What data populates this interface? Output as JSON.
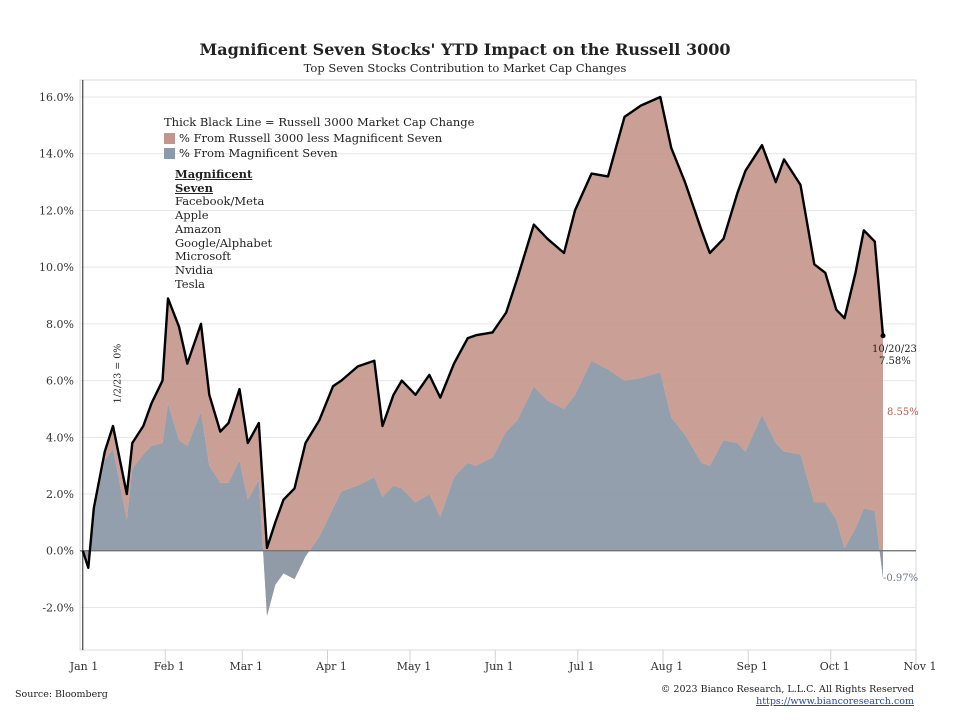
{
  "title": "Magnificent Seven Stocks' YTD Impact on the Russell 3000",
  "subtitle": "Top Seven Stocks Contribution to Market Cap Changes",
  "legend": {
    "line_label": "Thick Black Line = Russell 3000 Market Cap Change",
    "rest_label": "% From Russell 3000 less Magnificent Seven",
    "m7_label": "% From Magnificent Seven"
  },
  "magnificent_seven": {
    "heading": "Magnificent Seven",
    "heading_line1": "Magnificent",
    "heading_line2": "Seven",
    "names": [
      "Facebook/Meta",
      "Apple",
      "Amazon",
      "Google/Alphabet",
      "Microsoft",
      "Nvidia",
      "Tesla"
    ]
  },
  "annotations": {
    "start_line": "1/2/23 = 0%",
    "end_date": "10/20/23",
    "end_total": "7.58%",
    "end_rest": "8.55%",
    "end_m7": "-0.97%"
  },
  "footer": {
    "source": "Source: Bloomberg",
    "copyright": "© 2023 Bianco Research, L.L.C. All Rights Reserved",
    "url": "https://www.biancoresearch.com"
  },
  "colors": {
    "rest_area": "#c4958a",
    "m7_area": "#8d9aa8",
    "total_line": "#000000",
    "end_rest_text": "#b0604f",
    "end_m7_text": "#6d7a88"
  },
  "chart_data": {
    "type": "area",
    "title": "Magnificent Seven Stocks' YTD Impact on the Russell 3000",
    "subtitle": "Top Seven Stocks Contribution to Market Cap Changes",
    "x_ticks": [
      "Jan 1",
      "Feb 1",
      "Mar 1",
      "Apr 1",
      "May 1",
      "Jun 1",
      "Jul 1",
      "Aug 1",
      "Sep 1",
      "Oct 1",
      "Nov 1"
    ],
    "y_ticks": [
      "-2.0%",
      "0.0%",
      "2.0%",
      "4.0%",
      "6.0%",
      "8.0%",
      "10.0%",
      "12.0%",
      "14.0%",
      "16.0%"
    ],
    "ylim": [
      -3.5,
      16.6
    ],
    "xlim": [
      "2023-01-01",
      "2023-11-01"
    ],
    "grid": "horizontal",
    "x": [
      "2023-01-02",
      "2023-01-04",
      "2023-01-06",
      "2023-01-10",
      "2023-01-13",
      "2023-01-18",
      "2023-01-20",
      "2023-01-24",
      "2023-01-27",
      "2023-01-31",
      "2023-02-02",
      "2023-02-06",
      "2023-02-09",
      "2023-02-14",
      "2023-02-17",
      "2023-02-21",
      "2023-02-24",
      "2023-02-28",
      "2023-03-03",
      "2023-03-07",
      "2023-03-10",
      "2023-03-13",
      "2023-03-16",
      "2023-03-20",
      "2023-03-24",
      "2023-03-29",
      "2023-04-03",
      "2023-04-06",
      "2023-04-12",
      "2023-04-18",
      "2023-04-21",
      "2023-04-25",
      "2023-04-28",
      "2023-05-03",
      "2023-05-08",
      "2023-05-12",
      "2023-05-17",
      "2023-05-22",
      "2023-05-25",
      "2023-05-31",
      "2023-06-05",
      "2023-06-09",
      "2023-06-15",
      "2023-06-20",
      "2023-06-26",
      "2023-06-30",
      "2023-07-06",
      "2023-07-12",
      "2023-07-18",
      "2023-07-24",
      "2023-07-31",
      "2023-08-04",
      "2023-08-09",
      "2023-08-15",
      "2023-08-18",
      "2023-08-23",
      "2023-08-28",
      "2023-08-31",
      "2023-09-06",
      "2023-09-11",
      "2023-09-14",
      "2023-09-20",
      "2023-09-25",
      "2023-09-29",
      "2023-10-03",
      "2023-10-06",
      "2023-10-10",
      "2023-10-13",
      "2023-10-17",
      "2023-10-20"
    ],
    "series": [
      {
        "name": "Thick Black Line = Russell 3000 Market Cap Change",
        "values": [
          0.0,
          -0.6,
          1.5,
          3.5,
          4.4,
          2.0,
          3.8,
          4.4,
          5.2,
          6.0,
          8.9,
          7.9,
          6.6,
          8.0,
          5.5,
          4.2,
          4.5,
          5.7,
          3.8,
          4.5,
          0.1,
          1.0,
          1.8,
          2.2,
          3.8,
          4.6,
          5.8,
          6.0,
          6.5,
          6.7,
          4.4,
          5.5,
          6.0,
          5.5,
          6.2,
          5.4,
          6.6,
          7.5,
          7.6,
          7.7,
          8.4,
          9.6,
          11.5,
          11.0,
          10.5,
          12.0,
          13.3,
          13.2,
          15.3,
          15.7,
          16.0,
          14.2,
          13.0,
          11.3,
          10.5,
          11.0,
          12.6,
          13.4,
          14.3,
          13.0,
          13.8,
          12.9,
          10.1,
          9.8,
          8.5,
          8.2,
          9.8,
          11.3,
          10.9,
          7.58
        ]
      },
      {
        "name": "% From Russell 3000 less Magnificent Seven",
        "values": [
          0.0,
          -0.3,
          0.2,
          0.3,
          0.8,
          0.9,
          0.9,
          1.0,
          1.5,
          2.2,
          3.7,
          4.0,
          2.9,
          3.1,
          2.5,
          1.8,
          2.1,
          2.5,
          2.0,
          2.0,
          2.4,
          2.2,
          2.6,
          3.2,
          4.0,
          4.1,
          4.3,
          3.9,
          4.2,
          4.1,
          2.5,
          3.2,
          3.8,
          3.8,
          4.2,
          4.2,
          4.0,
          4.4,
          4.6,
          4.4,
          4.2,
          5.0,
          5.7,
          5.7,
          5.5,
          6.5,
          6.6,
          6.8,
          9.3,
          9.6,
          9.7,
          9.5,
          8.9,
          8.2,
          7.5,
          7.1,
          8.8,
          9.9,
          9.5,
          9.2,
          10.3,
          9.5,
          8.4,
          8.1,
          7.4,
          8.1,
          9.0,
          9.8,
          9.5,
          8.55
        ]
      },
      {
        "name": "% From Magnificent Seven",
        "values": [
          0.0,
          -0.3,
          1.3,
          3.2,
          3.6,
          1.1,
          2.9,
          3.4,
          3.7,
          3.8,
          5.2,
          3.9,
          3.7,
          4.9,
          3.0,
          2.4,
          2.4,
          3.2,
          1.8,
          2.5,
          -2.3,
          -1.2,
          -0.8,
          -1.0,
          -0.2,
          0.5,
          1.5,
          2.1,
          2.3,
          2.6,
          1.9,
          2.3,
          2.2,
          1.7,
          2.0,
          1.2,
          2.6,
          3.1,
          3.0,
          3.3,
          4.2,
          4.6,
          5.8,
          5.3,
          5.0,
          5.5,
          6.7,
          6.4,
          6.0,
          6.1,
          6.3,
          4.7,
          4.1,
          3.1,
          3.0,
          3.9,
          3.8,
          3.5,
          4.8,
          3.8,
          3.5,
          3.4,
          1.7,
          1.7,
          1.1,
          0.1,
          0.8,
          1.5,
          1.4,
          -0.97
        ]
      }
    ]
  }
}
